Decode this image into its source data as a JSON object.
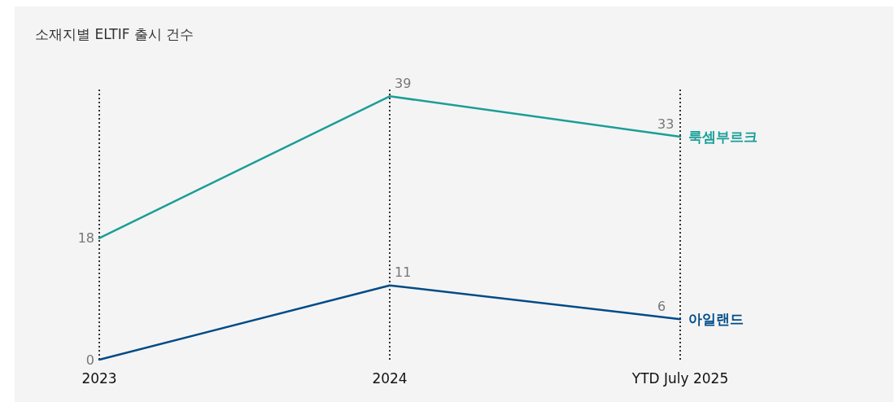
{
  "chart_data": {
    "type": "line",
    "title": "소재지별 ELTIF 출시 건수",
    "categories": [
      "2023",
      "2024",
      "YTD July 2025"
    ],
    "series": [
      {
        "name": "룩셈부르크",
        "color": "#1a9e97",
        "values": [
          18,
          39,
          33
        ]
      },
      {
        "name": "아일랜드",
        "color": "#004b87",
        "values": [
          0,
          11,
          6
        ]
      }
    ],
    "data_labels": true,
    "grid": "x",
    "legend": false,
    "marker": "none",
    "line_style": "solid"
  }
}
